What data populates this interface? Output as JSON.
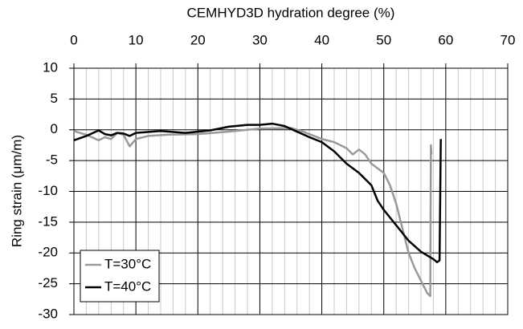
{
  "chart_data": {
    "type": "line",
    "x_label": "CEMHYD3D hydration degree (%)",
    "y_label": "Ring strain (μm/m)",
    "xlim": [
      0,
      70
    ],
    "xticks": [
      0,
      10,
      20,
      30,
      40,
      50,
      60,
      70
    ],
    "xminorticks": [
      2,
      4,
      6,
      8,
      12,
      14,
      16,
      18,
      22,
      24,
      26,
      28,
      32,
      34,
      36,
      38,
      42,
      44,
      46,
      48,
      52,
      54,
      56,
      58,
      62,
      64,
      66,
      68
    ],
    "ylim": [
      -30,
      10
    ],
    "yticks": [
      -30,
      -25,
      -20,
      -15,
      -10,
      -5,
      0,
      5,
      10
    ],
    "x_axis_position": "top",
    "grid": true,
    "legend": "lower left",
    "series": [
      {
        "name": "T=30°C",
        "color": "#999999",
        "x": [
          0,
          2,
          4,
          5,
          6,
          7,
          8,
          9,
          10,
          12,
          15,
          20,
          25,
          30,
          35,
          37,
          40,
          42,
          44,
          45,
          46,
          47,
          48,
          50,
          51,
          52,
          53,
          54,
          55,
          56,
          57,
          57.5,
          57.6,
          57.7
        ],
        "values": [
          -0.2,
          -0.8,
          -1.7,
          -1.2,
          -1.5,
          -0.5,
          -0.8,
          -2.7,
          -1.5,
          -1,
          -0.8,
          -0.7,
          -0.3,
          0.2,
          0.3,
          -0.3,
          -1.5,
          -2,
          -3,
          -4,
          -3.2,
          -4,
          -5.5,
          -7,
          -9,
          -12,
          -16,
          -20,
          -22.5,
          -24.5,
          -26.5,
          -27,
          -2.5,
          -4
        ]
      },
      {
        "name": "T=40°C",
        "color": "#000000",
        "x": [
          0,
          2,
          4,
          5,
          6,
          7,
          8,
          9,
          10,
          14,
          18,
          22,
          25,
          28,
          30,
          32,
          34,
          36,
          38,
          40,
          42,
          44,
          46,
          48,
          49,
          50,
          52,
          54,
          56,
          58,
          58.6,
          59,
          59.2
        ],
        "values": [
          -1.7,
          -1,
          -0.1,
          -0.7,
          -0.9,
          -0.5,
          -0.6,
          -1,
          -0.5,
          -0.2,
          -0.5,
          -0.1,
          0.5,
          0.8,
          0.8,
          1,
          0.6,
          -0.3,
          -1.2,
          -2,
          -3.5,
          -5.5,
          -7,
          -9,
          -11.5,
          -13,
          -15.5,
          -18,
          -19.8,
          -21,
          -21.5,
          -21.2,
          -1.5
        ]
      }
    ]
  }
}
